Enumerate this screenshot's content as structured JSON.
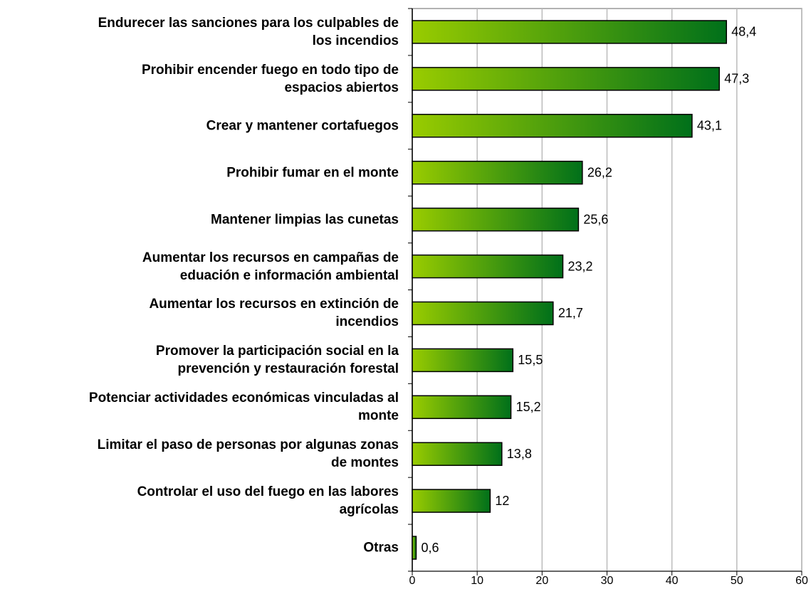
{
  "chart_data": {
    "type": "bar",
    "orientation": "horizontal",
    "categories": [
      "Endurecer las sanciones para los culpables de\nlos incendios",
      "Prohibir encender fuego en todo tipo de\nespacios abiertos",
      "Crear y mantener cortafuegos",
      "Prohibir fumar en el monte",
      "Mantener limpias las cunetas",
      "Aumentar los recursos en campañas de\neduación e información ambiental",
      "Aumentar los recursos en extinción de\nincendios",
      "Promover la participación social en la\nprevención y restauración forestal",
      "Potenciar actividades económicas vinculadas al\nmonte",
      "Limitar el paso de personas por algunas zonas\nde montes",
      "Controlar el uso del fuego en las labores\nagrícolas",
      "Otras"
    ],
    "values": [
      48.4,
      47.3,
      43.1,
      26.2,
      25.6,
      23.2,
      21.7,
      15.5,
      15.2,
      13.8,
      12,
      0.6
    ],
    "value_labels": [
      "48,4",
      "47,3",
      "43,1",
      "26,2",
      "25,6",
      "23,2",
      "21,7",
      "15,5",
      "15,2",
      "13,8",
      "12",
      "0,6"
    ],
    "color": [
      "#99cc00",
      "#00701a"
    ],
    "xlim": [
      0,
      60
    ],
    "xticks": [
      0,
      10,
      20,
      30,
      40,
      50,
      60
    ],
    "grid": true
  }
}
